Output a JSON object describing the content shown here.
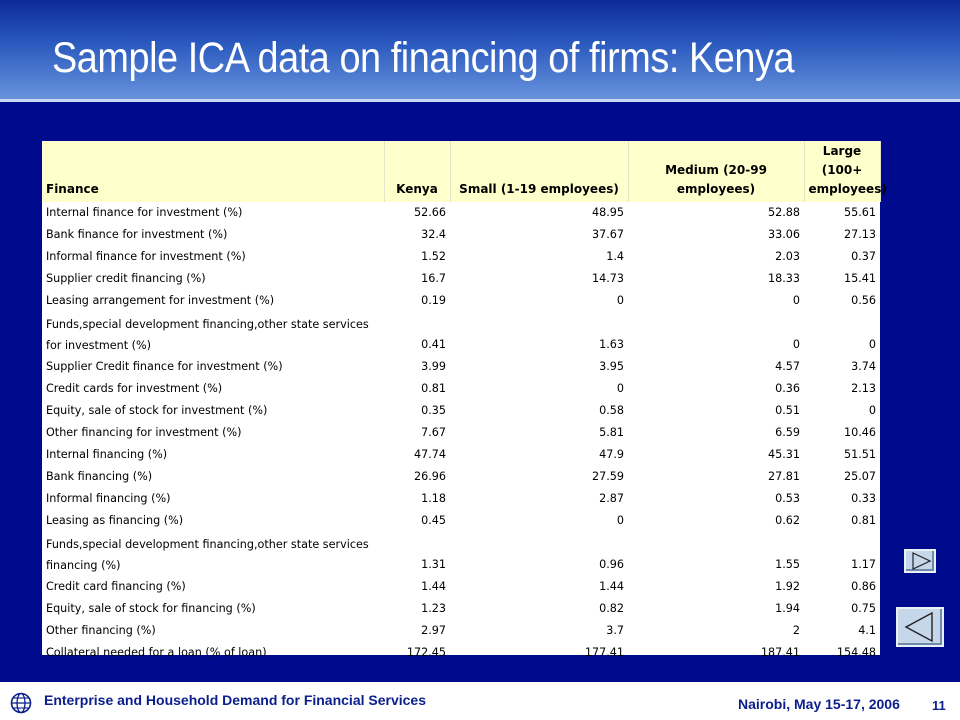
{
  "title": "Sample ICA data on financing of firms: Kenya",
  "table": {
    "headers": [
      "Finance",
      "Kenya",
      "Small (1-19 employees)",
      "Medium (20-99 employees)",
      "Large (100+ employees)"
    ],
    "rows": [
      {
        "label": "Internal finance for investment (%)",
        "values": [
          "52.66",
          "48.95",
          "52.88",
          "55.61"
        ]
      },
      {
        "label": "Bank finance for investment (%)",
        "values": [
          "32.4",
          "37.67",
          "33.06",
          "27.13"
        ]
      },
      {
        "label": "Informal finance for investment (%)",
        "values": [
          "1.52",
          "1.4",
          "2.03",
          "0.37"
        ]
      },
      {
        "label": "Supplier credit financing (%)",
        "values": [
          "16.7",
          "14.73",
          "18.33",
          "15.41"
        ]
      },
      {
        "label": "Leasing arrangement for investment (%)",
        "values": [
          "0.19",
          "0",
          "0",
          "0.56"
        ]
      },
      {
        "label": "Funds,special development financing,other state services for investment (%)",
        "values": [
          "0.41",
          "1.63",
          "0",
          "0"
        ]
      },
      {
        "label": "Supplier Credit finance for investment (%)",
        "values": [
          "3.99",
          "3.95",
          "4.57",
          "3.74"
        ]
      },
      {
        "label": "Credit cards for investment (%)",
        "values": [
          "0.81",
          "0",
          "0.36",
          "2.13"
        ]
      },
      {
        "label": "Equity, sale of stock for investment (%)",
        "values": [
          "0.35",
          "0.58",
          "0.51",
          "0"
        ]
      },
      {
        "label": "Other financing for investment (%)",
        "values": [
          "7.67",
          "5.81",
          "6.59",
          "10.46"
        ]
      },
      {
        "label": "Internal financing (%)",
        "values": [
          "47.74",
          "47.9",
          "45.31",
          "51.51"
        ]
      },
      {
        "label": "Bank financing (%)",
        "values": [
          "26.96",
          "27.59",
          "27.81",
          "25.07"
        ]
      },
      {
        "label": "Informal financing (%)",
        "values": [
          "1.18",
          "2.87",
          "0.53",
          "0.33"
        ]
      },
      {
        "label": "Leasing as financing (%)",
        "values": [
          "0.45",
          "0",
          "0.62",
          "0.81"
        ]
      },
      {
        "label": "Funds,special development financing,other state services financing (%)",
        "values": [
          "1.31",
          "0.96",
          "1.55",
          "1.17"
        ]
      },
      {
        "label": "Credit card financing (%)",
        "values": [
          "1.44",
          "1.44",
          "1.92",
          "0.86"
        ]
      },
      {
        "label": "Equity, sale of stock for financing (%)",
        "values": [
          "1.23",
          "0.82",
          "1.94",
          "0.75"
        ]
      },
      {
        "label": "Other financing (%)",
        "values": [
          "2.97",
          "3.7",
          "2",
          "4.1"
        ]
      },
      {
        "label": "Collateral needed for a loan (% of loan)",
        "values": [
          "172.45",
          "177.41",
          "187.41",
          "154.48"
        ]
      }
    ]
  },
  "footer": {
    "left": "Enterprise and Household Demand for Financial Services",
    "right": "Nairobi, May 15-17, 2006",
    "page": "11"
  },
  "icons": {
    "footer": "globe-icon",
    "forward": "play-forward-icon",
    "back": "play-back-icon"
  },
  "colors": {
    "background": "#000a8c",
    "header_fill": "#ffffcc",
    "footer_text": "#0a1e8c"
  }
}
